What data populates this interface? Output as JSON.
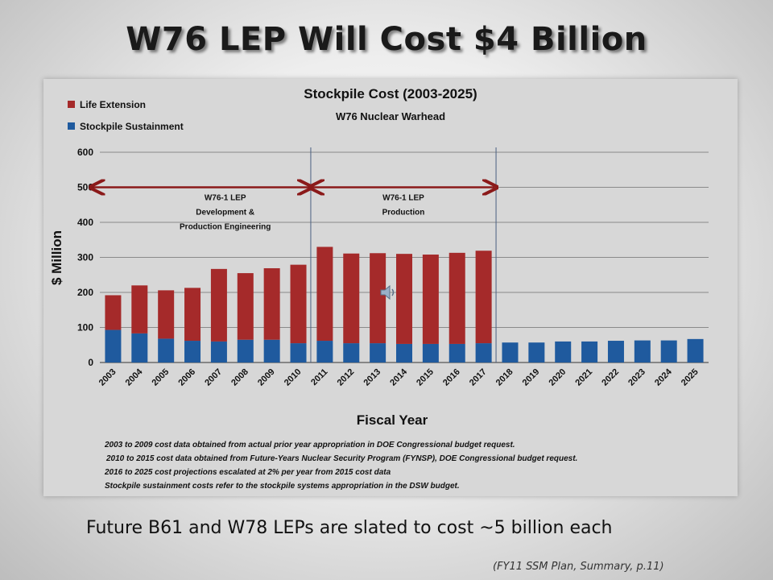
{
  "slide": {
    "title": "W76 LEP Will Cost $4 Billion",
    "caption": "Future B61 and W78 LEPs are slated to cost ~5 billion each",
    "source": "(FY11 SSM Plan, Summary, p.11)"
  },
  "chart_data": {
    "type": "bar",
    "stacked": true,
    "title": "Stockpile Cost (2003-2025)",
    "subtitle": "W76 Nuclear Warhead",
    "xlabel": "Fiscal Year",
    "ylabel": "$ Million",
    "ylim": [
      0,
      600
    ],
    "yticks": [
      0,
      100,
      200,
      300,
      400,
      500,
      600
    ],
    "grid": true,
    "legend_position": "top-left",
    "categories": [
      "2003",
      "2004",
      "2005",
      "2006",
      "2007",
      "2008",
      "2009",
      "2010",
      "2011",
      "2012",
      "2013",
      "2014",
      "2015",
      "2016",
      "2017",
      "2018",
      "2019",
      "2020",
      "2021",
      "2022",
      "2023",
      "2024",
      "2025"
    ],
    "series": [
      {
        "name": "Stockpile Sustainment",
        "color": "#1f5a9e",
        "values": [
          93,
          83,
          68,
          62,
          60,
          65,
          65,
          55,
          62,
          55,
          55,
          53,
          53,
          53,
          55,
          57,
          57,
          60,
          60,
          62,
          63,
          63,
          67
        ]
      },
      {
        "name": "Life Extension",
        "color": "#a52a2a",
        "values": [
          99,
          137,
          138,
          151,
          207,
          190,
          204,
          224,
          268,
          256,
          257,
          257,
          255,
          260,
          264,
          0,
          0,
          0,
          0,
          0,
          0,
          0,
          0
        ]
      }
    ],
    "annotations": [
      {
        "text_lines": [
          "W76-1 LEP",
          "Development &",
          "Production Engineering"
        ],
        "from": "2003",
        "to": "2010"
      },
      {
        "text_lines": [
          "W76-1 LEP",
          "Production"
        ],
        "from": "2010",
        "to": "2017"
      }
    ],
    "notes": [
      "2003 to 2009 cost  data obtained from actual prior year appropriation in DOE Congressional budget request.",
      "2010 to 2015 cost data obtained from Future-Years Nuclear Security Program (FYNSP), DOE Congressional budget request.",
      "2016  to 2025 cost projections  escalated at 2% per year from 2015 cost data",
      "Stockpile sustainment costs refer to the stockpile systems appropriation in the DSW budget."
    ]
  }
}
